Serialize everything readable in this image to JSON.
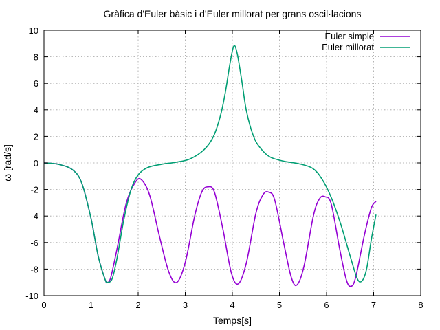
{
  "chart_data": {
    "type": "line",
    "title": "Gràfica d'Euler bàsic i d'Euler millorat per grans oscil·lacions",
    "xlabel": "Temps[s]",
    "ylabel": "ω [rad/s]",
    "xlim": [
      0,
      8
    ],
    "ylim": [
      -10,
      10
    ],
    "xticks": [
      "0",
      "1",
      "2",
      "3",
      "4",
      "5",
      "6",
      "7",
      "8"
    ],
    "yticks": [
      "-10",
      "-8",
      "-6",
      "-4",
      "-2",
      "0",
      "2",
      "4",
      "6",
      "8",
      "10"
    ],
    "grid": true,
    "legend_position": "top-right",
    "series": [
      {
        "name": "Euler simple",
        "color": "#9400d3",
        "x": [
          0,
          0.3,
          0.6,
          0.8,
          1.0,
          1.15,
          1.3,
          1.35,
          1.42,
          1.55,
          1.75,
          1.95,
          2.08,
          2.25,
          2.45,
          2.65,
          2.82,
          3.0,
          3.2,
          3.35,
          3.48,
          3.62,
          3.8,
          3.98,
          4.13,
          4.3,
          4.5,
          4.65,
          4.77,
          4.9,
          5.1,
          5.25,
          5.37,
          5.52,
          5.72,
          5.85,
          5.97,
          6.1,
          6.28,
          6.42,
          6.52,
          6.62,
          6.8,
          6.95,
          7.05
        ],
        "y": [
          0,
          -0.1,
          -0.5,
          -1.5,
          -4.2,
          -7.0,
          -8.8,
          -9.0,
          -8.6,
          -6.5,
          -3.0,
          -1.4,
          -1.3,
          -2.5,
          -5.5,
          -8.2,
          -9.0,
          -7.5,
          -4.0,
          -2.2,
          -1.8,
          -2.2,
          -5.0,
          -8.3,
          -9.1,
          -7.5,
          -3.8,
          -2.4,
          -2.2,
          -2.8,
          -6.2,
          -8.6,
          -9.2,
          -7.8,
          -4.0,
          -2.7,
          -2.55,
          -3.1,
          -6.5,
          -8.8,
          -9.3,
          -8.6,
          -5.5,
          -3.4,
          -2.9
        ]
      },
      {
        "name": "Euler millorat",
        "color": "#009e73",
        "x": [
          0,
          0.3,
          0.6,
          0.8,
          1.0,
          1.15,
          1.3,
          1.36,
          1.45,
          1.55,
          1.7,
          1.85,
          2.0,
          2.2,
          2.5,
          2.8,
          3.1,
          3.4,
          3.6,
          3.75,
          3.85,
          3.95,
          4.03,
          4.1,
          4.2,
          4.3,
          4.45,
          4.6,
          4.8,
          5.1,
          5.4,
          5.7,
          5.9,
          6.1,
          6.3,
          6.5,
          6.65,
          6.75,
          6.85,
          6.95,
          7.05
        ],
        "y": [
          0,
          -0.1,
          -0.5,
          -1.5,
          -4.2,
          -7.0,
          -8.8,
          -9.0,
          -8.7,
          -7.2,
          -4.2,
          -2.0,
          -0.9,
          -0.35,
          -0.1,
          0.05,
          0.3,
          1.0,
          2.0,
          3.6,
          5.3,
          7.5,
          8.8,
          8.3,
          6.2,
          3.9,
          2.0,
          1.1,
          0.45,
          0.12,
          -0.05,
          -0.4,
          -1.2,
          -2.6,
          -4.6,
          -7.0,
          -8.7,
          -8.9,
          -8.0,
          -5.8,
          -3.9
        ]
      }
    ]
  }
}
